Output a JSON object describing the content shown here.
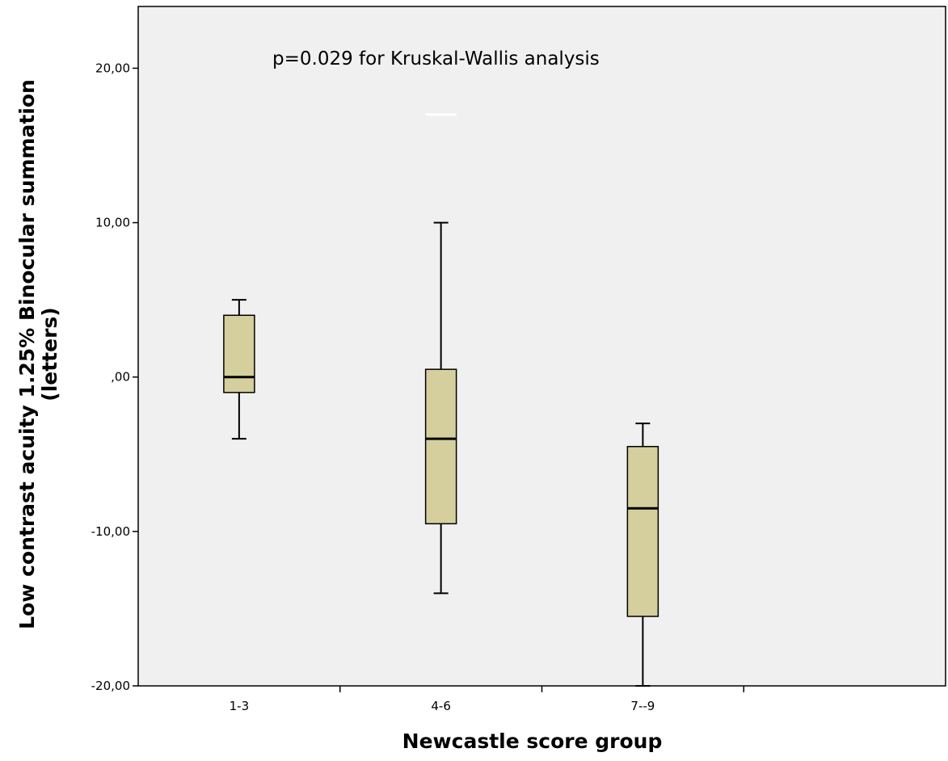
{
  "chart_data": {
    "type": "boxplot",
    "annotation": "p=0.029 for Kruskal-Wallis analysis",
    "xlabel": "Newcastle score group",
    "ylabel_lines": [
      "Low contrast acuity 1.25% Binocular summation",
      "(letters)"
    ],
    "categories": [
      "1-3",
      "4-6",
      "7--9"
    ],
    "ylim": [
      -20,
      24
    ],
    "yticks": [
      20,
      10,
      0,
      -10,
      -20
    ],
    "ytick_labels": [
      "20,00",
      "10,00",
      ",00",
      "-10,00",
      "-20,00"
    ],
    "boxes": [
      {
        "category": "1-3",
        "whisker_low": -4,
        "q1": -1,
        "median": 0,
        "q3": 4,
        "whisker_high": 5
      },
      {
        "category": "4-6",
        "whisker_low": -14,
        "q1": -9.5,
        "median": -4,
        "q3": 0.5,
        "whisker_high": 10
      },
      {
        "category": "7--9",
        "whisker_low": -20,
        "q1": -15.5,
        "median": -8.5,
        "q3": -4.5,
        "whisker_high": -3
      }
    ],
    "outliers": [
      {
        "category": "4-6",
        "value": 17
      }
    ],
    "colors": {
      "plot_background": "#f0f0f0",
      "box_fill": "#d4cf9d",
      "outlier": "#ffffff"
    },
    "grid": false,
    "legend": "none"
  }
}
